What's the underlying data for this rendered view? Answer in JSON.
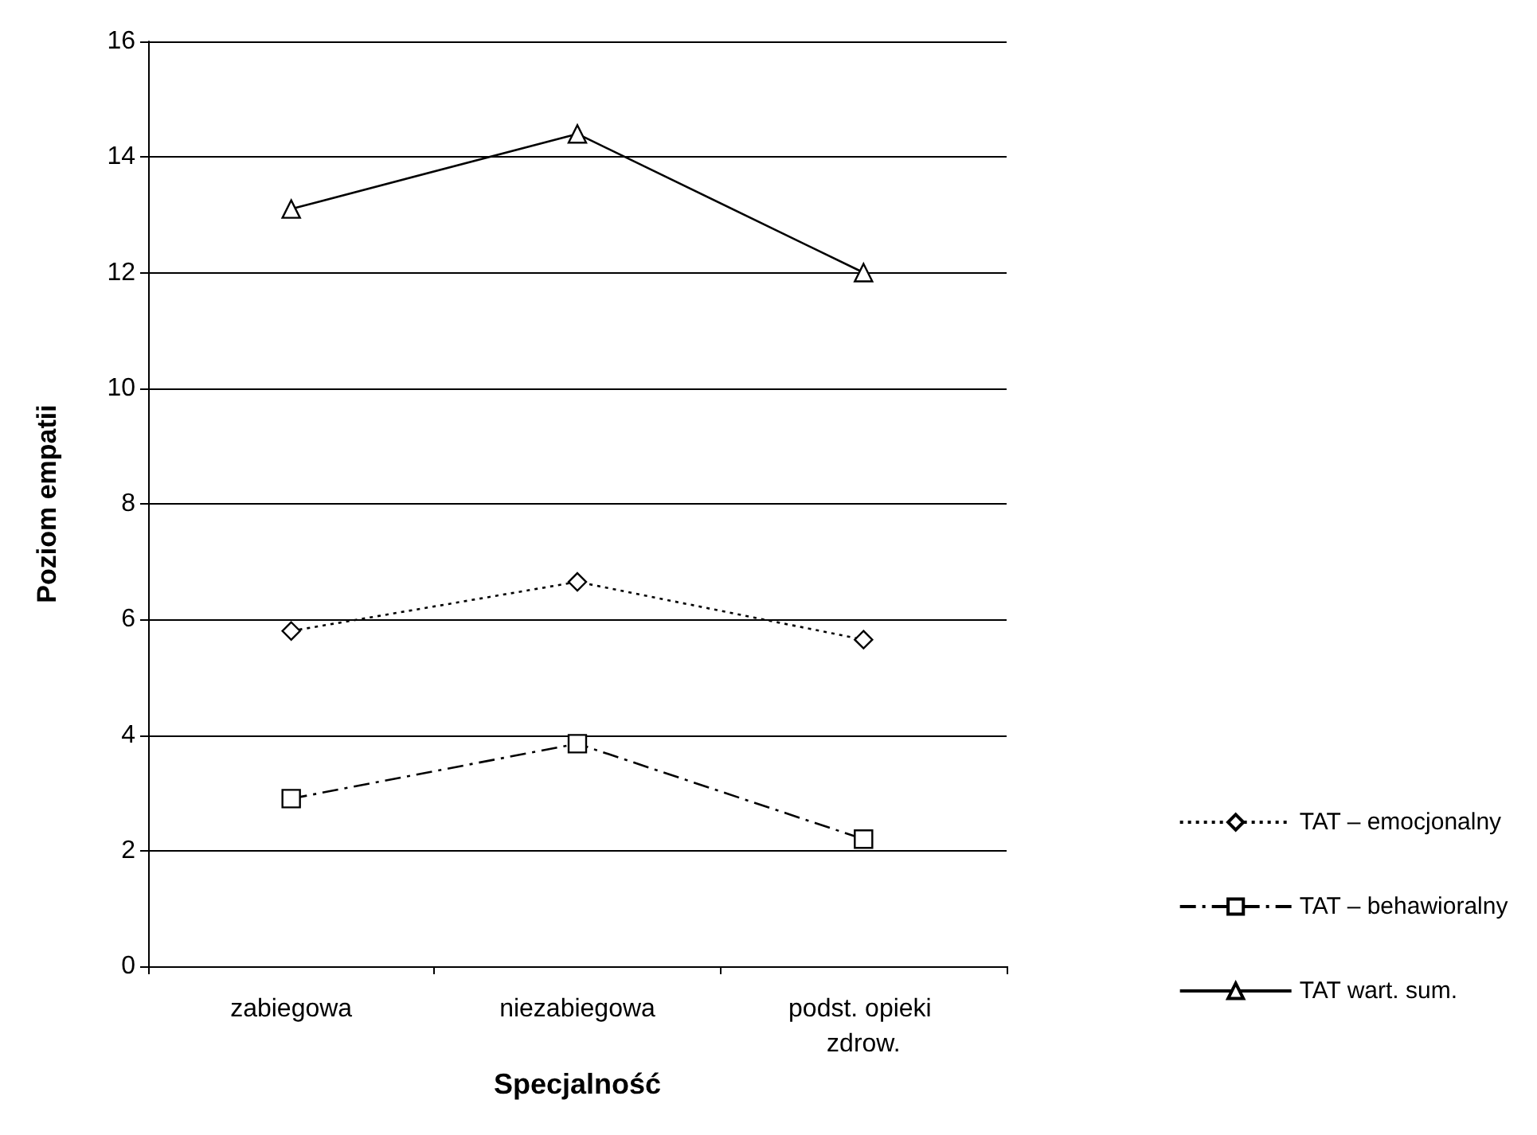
{
  "chart_data": {
    "type": "line",
    "xlabel": "Specjalność",
    "ylabel": "Poziom empatii",
    "categories": [
      "zabiegowa",
      "niezabiegowa",
      "podst. opieki zdrow."
    ],
    "series": [
      {
        "name": "TAT – emocjonalny",
        "color": "#000000",
        "marker": "diamond",
        "line_style": "dotted",
        "values": [
          5.8,
          6.65,
          5.65
        ]
      },
      {
        "name": "TAT – behawioralny",
        "color": "#000000",
        "marker": "square",
        "line_style": "dashed",
        "values": [
          2.9,
          3.85,
          2.2
        ]
      },
      {
        "name": "TAT wart. sum.",
        "color": "#000000",
        "marker": "triangle",
        "line_style": "solid",
        "values": [
          13.1,
          14.4,
          12.0
        ]
      }
    ],
    "ylim": [
      0,
      16
    ],
    "yticks": [
      0,
      2,
      4,
      6,
      8,
      10,
      12,
      14,
      16
    ],
    "grid": "y",
    "legend": "right"
  }
}
